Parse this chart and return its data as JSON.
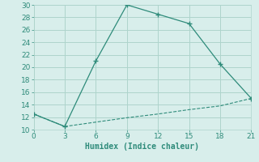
{
  "line1_x": [
    0,
    3,
    6,
    9,
    12,
    15,
    18,
    21
  ],
  "line1_y": [
    12.5,
    10.5,
    21,
    30,
    28.5,
    27,
    20.5,
    15
  ],
  "line2_x": [
    0,
    3,
    6,
    9,
    12,
    15,
    18,
    21
  ],
  "line2_y": [
    12.5,
    10.5,
    11.2,
    11.9,
    12.5,
    13.2,
    13.8,
    15
  ],
  "line_color": "#2e8b7a",
  "bg_color": "#d8eeeb",
  "grid_color": "#aed4cc",
  "xlabel": "Humidex (Indice chaleur)",
  "xlim": [
    0,
    21
  ],
  "ylim": [
    10,
    30
  ],
  "xticks": [
    0,
    3,
    6,
    9,
    12,
    15,
    18,
    21
  ],
  "yticks": [
    10,
    12,
    14,
    16,
    18,
    20,
    22,
    24,
    26,
    28,
    30
  ],
  "xlabel_fontsize": 7,
  "tick_fontsize": 6.5,
  "marker": "+"
}
